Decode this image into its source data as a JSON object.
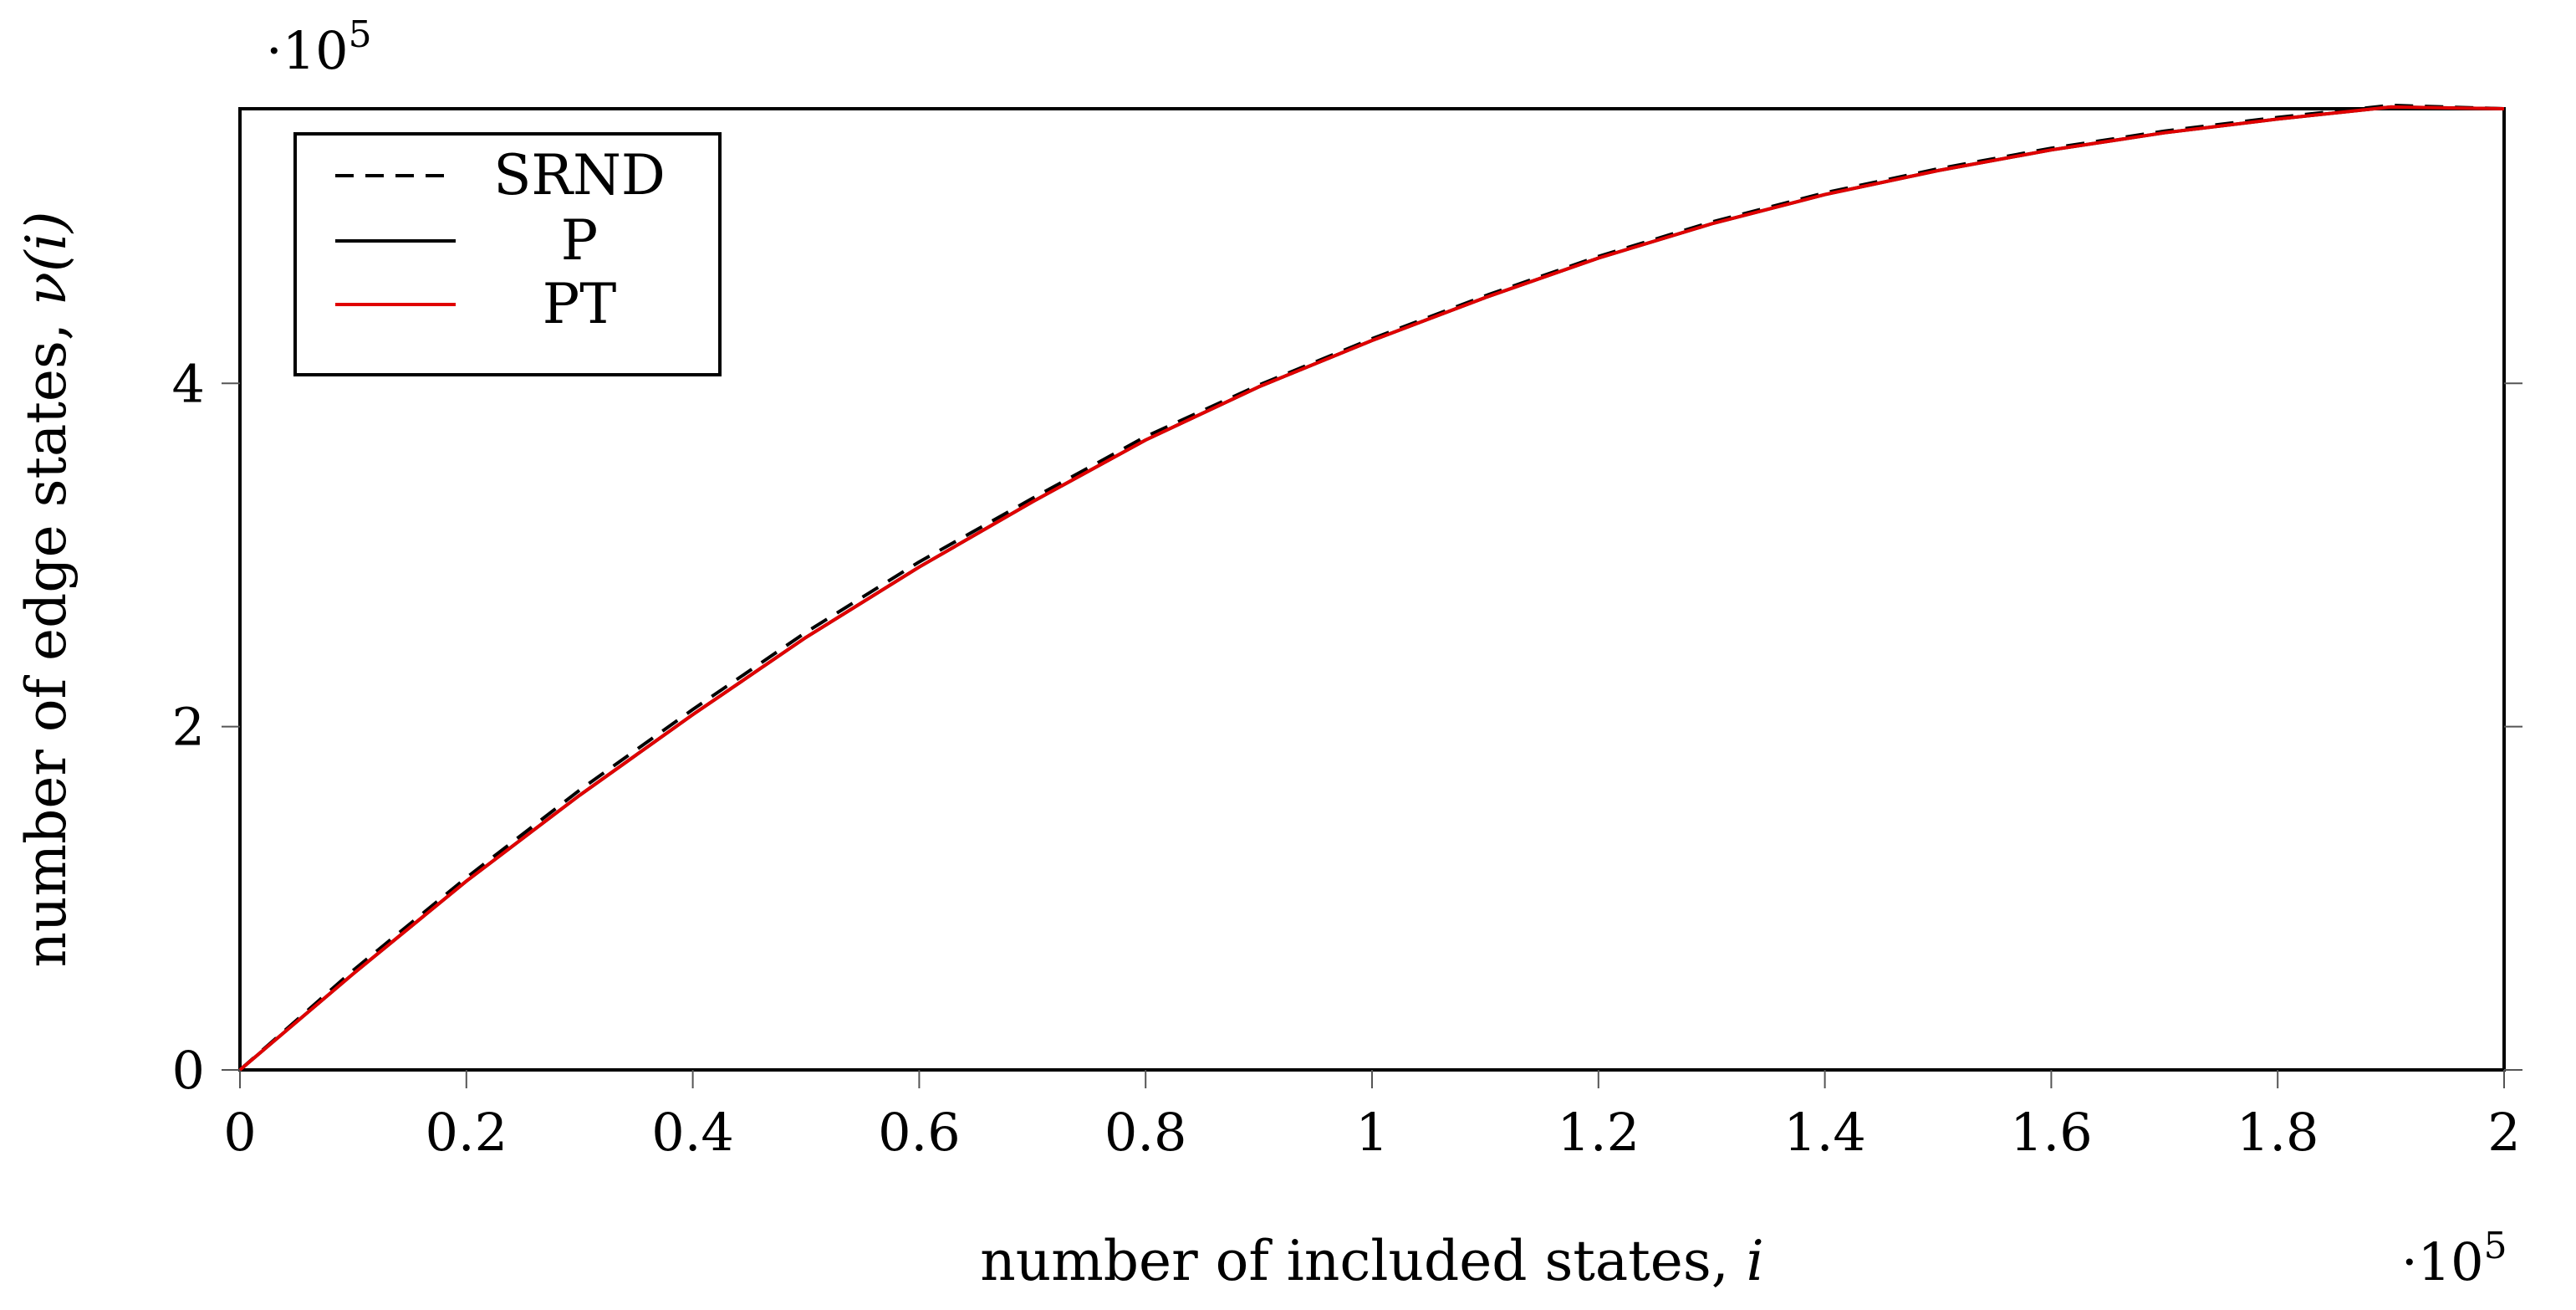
{
  "chart_data": {
    "type": "line",
    "title": "",
    "xlabel_text": "number of included states,",
    "xlabel_var": "i",
    "ylabel_text": "number of edge states,",
    "ylabel_func": "ν",
    "ylabel_arg": "(i)",
    "x_multiplier": "·10",
    "x_multiplier_exp": "5",
    "y_multiplier": "·10",
    "y_multiplier_exp": "5",
    "xlim": [
      0,
      200000
    ],
    "ylim": [
      0,
      560000
    ],
    "x_ticks": [
      0,
      20000,
      40000,
      60000,
      80000,
      100000,
      120000,
      140000,
      160000,
      180000,
      200000
    ],
    "x_tick_labels": [
      "0",
      "0.2",
      "0.4",
      "0.6",
      "0.8",
      "1",
      "1.2",
      "1.4",
      "1.6",
      "1.8",
      "2"
    ],
    "y_ticks": [
      0,
      200000,
      400000
    ],
    "y_tick_labels": [
      "0",
      "2",
      "4"
    ],
    "grid": false,
    "legend_position": "top-left",
    "series": [
      {
        "name": "SRND",
        "style": "dashed",
        "color": "#000000",
        "x": [
          0,
          10000,
          20000,
          30000,
          40000,
          50000,
          60000,
          70000,
          80000,
          90000,
          100000,
          110000,
          120000,
          130000,
          140000,
          150000,
          160000,
          170000,
          180000,
          190000,
          200000
        ],
        "values": [
          0,
          58000,
          112000,
          163000,
          210000,
          255000,
          296000,
          333000,
          369000,
          399000,
          426000,
          451000,
          474000,
          494000,
          511000,
          525000,
          537000,
          547000,
          555000,
          562000,
          560000
        ]
      },
      {
        "name": "P",
        "style": "solid",
        "color": "#000000",
        "x": [
          0,
          10000,
          20000,
          30000,
          40000,
          50000,
          60000,
          70000,
          80000,
          90000,
          100000,
          110000,
          120000,
          130000,
          140000,
          150000,
          160000,
          170000,
          180000,
          190000,
          200000
        ],
        "values": [
          0,
          56000,
          110000,
          160000,
          207000,
          252000,
          293000,
          331000,
          367000,
          398000,
          425000,
          450000,
          473000,
          493000,
          510000,
          524000,
          536000,
          546000,
          554000,
          561000,
          560000
        ]
      },
      {
        "name": "PT",
        "style": "solid",
        "color": "#e00000",
        "x": [
          0,
          10000,
          20000,
          30000,
          40000,
          50000,
          60000,
          70000,
          80000,
          90000,
          100000,
          110000,
          120000,
          130000,
          140000,
          150000,
          160000,
          170000,
          180000,
          190000,
          200000
        ],
        "values": [
          0,
          56000,
          110000,
          160000,
          207000,
          252000,
          293000,
          331000,
          367000,
          398000,
          425000,
          450000,
          473000,
          493000,
          510000,
          524000,
          536000,
          546000,
          554000,
          561000,
          560000
        ]
      }
    ]
  }
}
